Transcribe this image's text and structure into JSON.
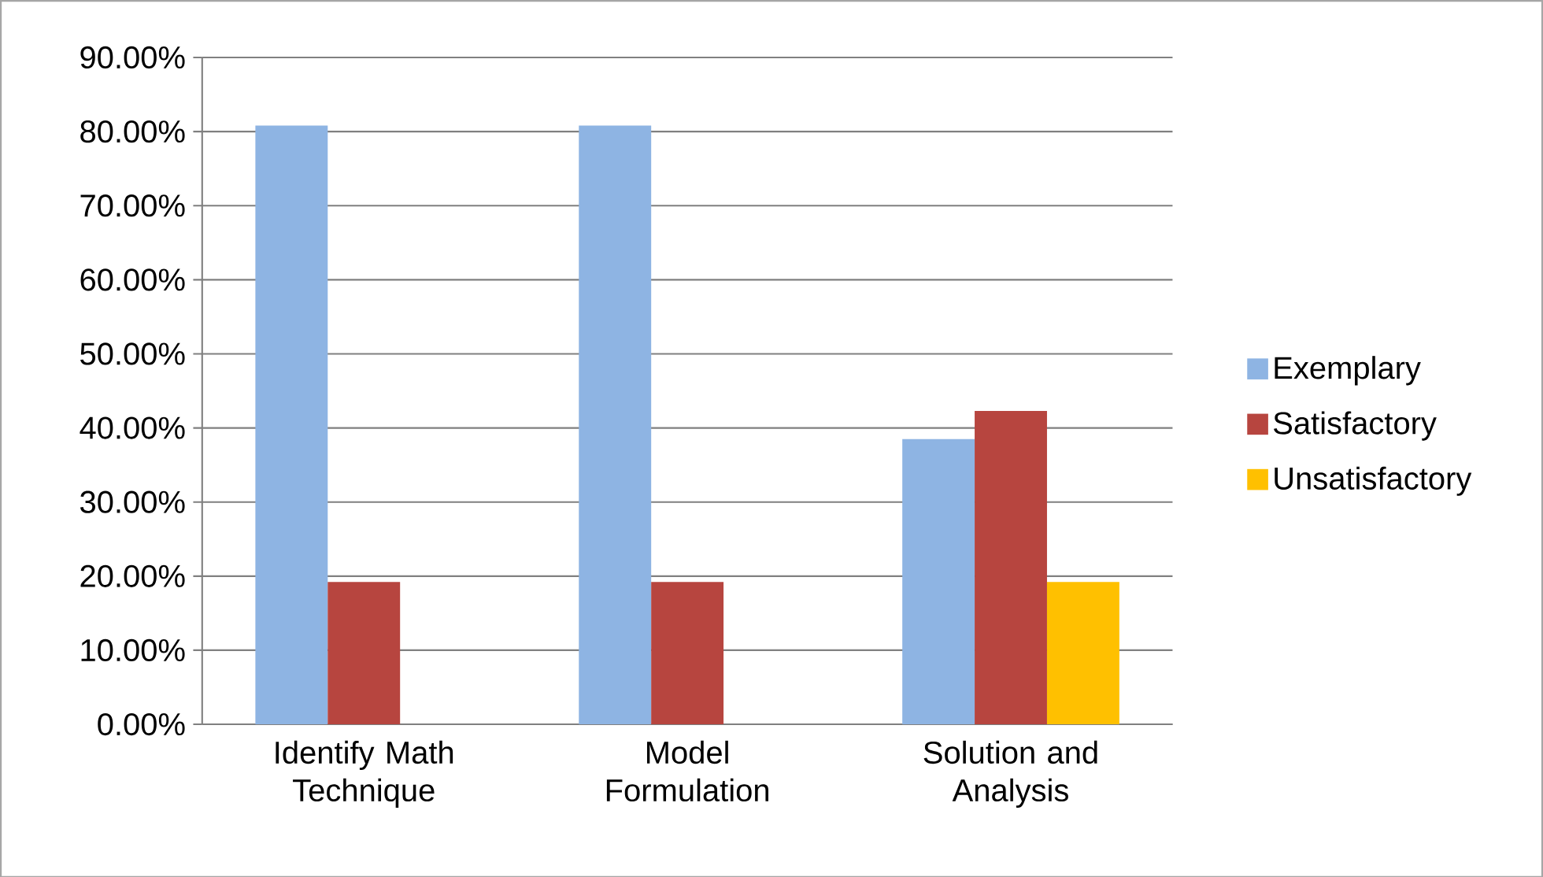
{
  "chart_data": {
    "type": "bar",
    "categories": [
      "Identify Math Technique",
      "Model Formulation",
      "Solution and Analysis"
    ],
    "series": [
      {
        "name": "Exemplary",
        "color": "#8eb4e3",
        "values": [
          80.8,
          80.8,
          38.5
        ]
      },
      {
        "name": "Satisfactory",
        "color": "#b7453f",
        "values": [
          19.2,
          19.2,
          42.3
        ]
      },
      {
        "name": "Unsatisfactory",
        "color": "#ffc000",
        "values": [
          0,
          0,
          19.2
        ]
      }
    ],
    "ylim": [
      0,
      90
    ],
    "yticks": [
      {
        "value": 0,
        "label": "0.00%"
      },
      {
        "value": 10,
        "label": "10.00%"
      },
      {
        "value": 20,
        "label": "20.00%"
      },
      {
        "value": 30,
        "label": "30.00%"
      },
      {
        "value": 40,
        "label": "40.00%"
      },
      {
        "value": 50,
        "label": "50.00%"
      },
      {
        "value": 60,
        "label": "60.00%"
      },
      {
        "value": 70,
        "label": "70.00%"
      },
      {
        "value": 80,
        "label": "80.00%"
      },
      {
        "value": 90,
        "label": "90.00%"
      }
    ],
    "grid": "y",
    "legend": "right"
  }
}
